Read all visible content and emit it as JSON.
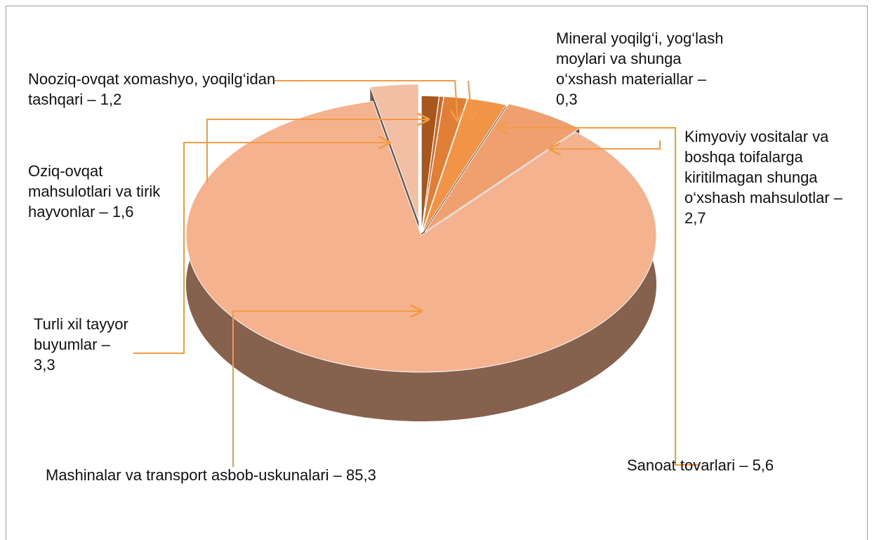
{
  "chart_data": {
    "type": "pie",
    "categories": [
      "Nooziq-ovqat xomashyo, yoqilg‘idan tashqari",
      "Mineral yoqilg‘i, yog‘lash moylari va shunga o‘xshash materiallar",
      "Oziq-ovqat mahsulotlari va tirik hayvonlar",
      "Kimyoviy vositalar va boshqa toifalarga kiritilmagan shunga o‘xshash mahsulotlar",
      "Sanoat tovarlari",
      "Mashinalar va transport asbob-uskunalari",
      "Turli xil tayyor buyumlar"
    ],
    "values": [
      1.2,
      0.3,
      1.6,
      2.7,
      5.6,
      85.3,
      3.3
    ],
    "value_labels": [
      "– 1,2",
      "– 0,3",
      "– 1,6",
      "– 2,7",
      "– 5,6",
      "– 85,3",
      "– 3,3"
    ],
    "colors": [
      "#a8561c",
      "#c46a2a",
      "#e07f35",
      "#f19445",
      "#f0a06e",
      "#f4b28e",
      "#f3bfa4"
    ]
  }
}
